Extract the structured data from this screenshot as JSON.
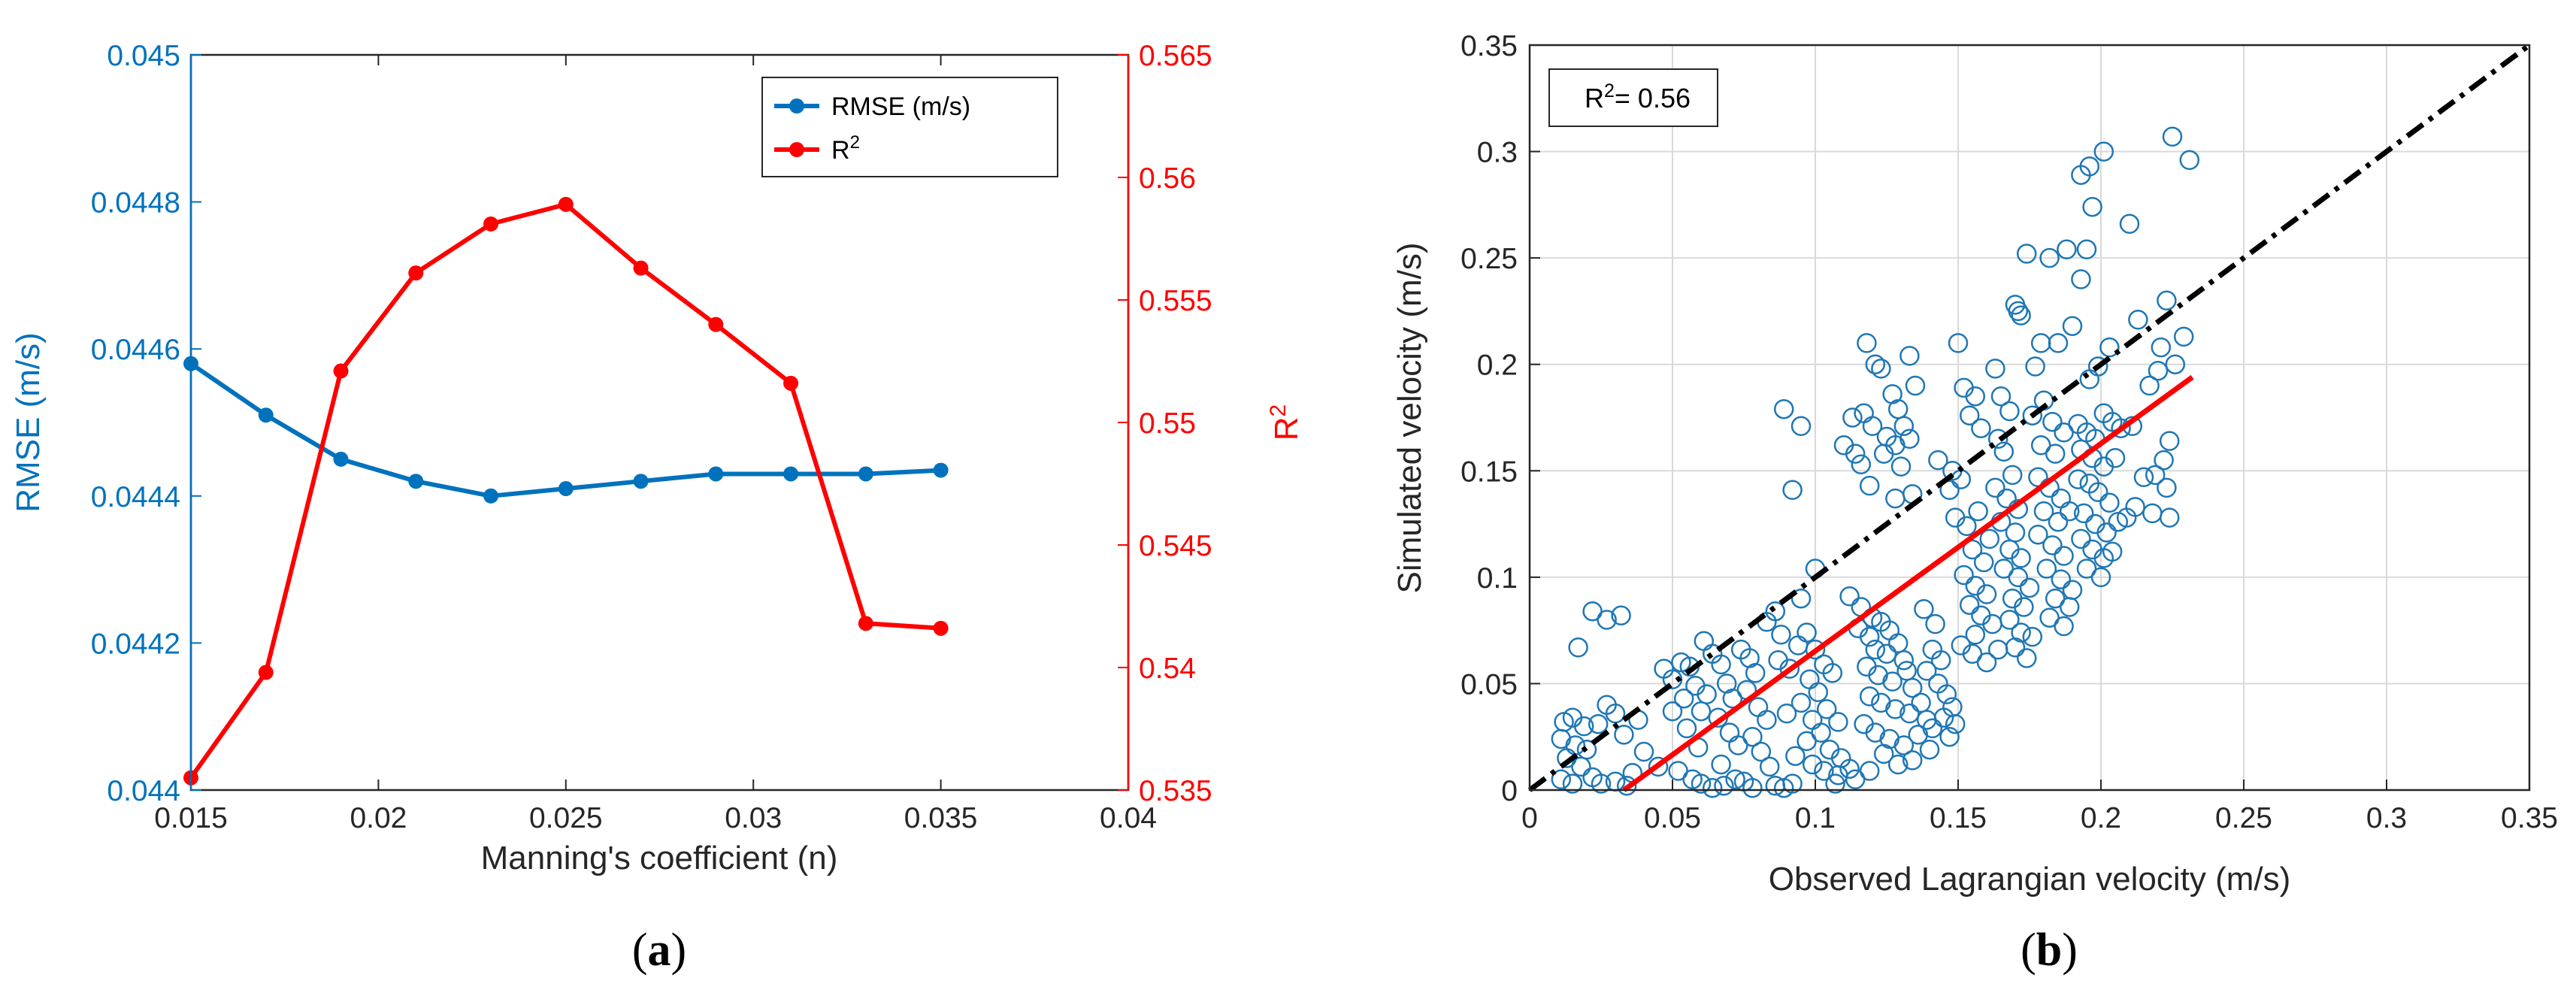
{
  "colors": {
    "rmse": "#0072BD",
    "r2": "#FF0000",
    "scatter": "#1F77B4",
    "fit": "#FF0000",
    "identity": "#000000",
    "grid": "#D9D9D9"
  },
  "chart_data": [
    {
      "id": "a",
      "type": "line",
      "panel_label": "(a)",
      "panel_label_letter": "a",
      "xlabel": "Manning's coefficient (n)",
      "ylabel_left": "RMSE (m/s)",
      "ylabel_right": "R",
      "ylabel_right_sup": "2",
      "xlim": [
        0.015,
        0.04
      ],
      "ylim_left": [
        0.044,
        0.045
      ],
      "ylim_right": [
        0.535,
        0.565
      ],
      "x_ticks": [
        "0.015",
        "0.02",
        "0.025",
        "0.03",
        "0.035",
        "0.04"
      ],
      "y_left_ticks": [
        "0.044",
        "0.0442",
        "0.0444",
        "0.0446",
        "0.0448",
        "0.045"
      ],
      "y_right_ticks": [
        "0.535",
        "0.54",
        "0.545",
        "0.55",
        "0.555",
        "0.56",
        "0.565"
      ],
      "grid": false,
      "legend_position": "top-right",
      "series": [
        {
          "name": "RMSE (m/s)",
          "axis": "left",
          "x": [
            0.015,
            0.017,
            0.019,
            0.021,
            0.023,
            0.025,
            0.027,
            0.029,
            0.031,
            0.033,
            0.035
          ],
          "values": [
            0.04458,
            0.04451,
            0.04445,
            0.04442,
            0.0444,
            0.04441,
            0.04442,
            0.04443,
            0.04443,
            0.04443,
            0.044435
          ]
        },
        {
          "name": "R",
          "name_sup": "2",
          "axis": "right",
          "x": [
            0.015,
            0.017,
            0.019,
            0.021,
            0.023,
            0.025,
            0.027,
            0.029,
            0.031,
            0.033,
            0.035
          ],
          "values": [
            0.5355,
            0.5398,
            0.5521,
            0.5561,
            0.5581,
            0.5589,
            0.5563,
            0.554,
            0.5516,
            0.5418,
            0.5416
          ]
        }
      ]
    },
    {
      "id": "b",
      "type": "scatter",
      "panel_label": "(b)",
      "panel_label_letter": "b",
      "xlabel": "Observed Lagrangian velocity (m/s)",
      "ylabel": "Simulated velocity (m/s)",
      "xlim": [
        0,
        0.35
      ],
      "ylim": [
        0,
        0.35
      ],
      "x_ticks": [
        "0",
        "0.05",
        "0.1",
        "0.15",
        "0.2",
        "0.25",
        "0.3",
        "0.35"
      ],
      "y_ticks": [
        "0",
        "0.05",
        "0.1",
        "0.15",
        "0.2",
        "0.25",
        "0.3",
        "0.35"
      ],
      "grid": true,
      "annotation": "R",
      "annotation_sup": "2",
      "annotation_value": "= 0.56",
      "identity_line": {
        "x": [
          0,
          0.35
        ],
        "y": [
          0,
          0.35
        ]
      },
      "fit_line": {
        "x": [
          0.033,
          0.232
        ],
        "y": [
          0.0,
          0.194
        ]
      },
      "points": [
        [
          0.022,
          0.084
        ],
        [
          0.027,
          0.08
        ],
        [
          0.032,
          0.082
        ],
        [
          0.017,
          0.067
        ],
        [
          0.012,
          0.032
        ],
        [
          0.015,
          0.034
        ],
        [
          0.019,
          0.03
        ],
        [
          0.011,
          0.024
        ],
        [
          0.016,
          0.021
        ],
        [
          0.02,
          0.019
        ],
        [
          0.013,
          0.015
        ],
        [
          0.018,
          0.011
        ],
        [
          0.022,
          0.006
        ],
        [
          0.011,
          0.005
        ],
        [
          0.015,
          0.003
        ],
        [
          0.025,
          0.003
        ],
        [
          0.03,
          0.004
        ],
        [
          0.034,
          0.002
        ],
        [
          0.027,
          0.04
        ],
        [
          0.03,
          0.036
        ],
        [
          0.024,
          0.031
        ],
        [
          0.033,
          0.026
        ],
        [
          0.038,
          0.033
        ],
        [
          0.04,
          0.018
        ],
        [
          0.036,
          0.008
        ],
        [
          0.045,
          0.011
        ],
        [
          0.047,
          0.057
        ],
        [
          0.05,
          0.052
        ],
        [
          0.053,
          0.06
        ],
        [
          0.056,
          0.058
        ],
        [
          0.058,
          0.049
        ],
        [
          0.054,
          0.043
        ],
        [
          0.05,
          0.037
        ],
        [
          0.06,
          0.037
        ],
        [
          0.062,
          0.045
        ],
        [
          0.055,
          0.029
        ],
        [
          0.059,
          0.02
        ],
        [
          0.052,
          0.009
        ],
        [
          0.057,
          0.005
        ],
        [
          0.06,
          0.003
        ],
        [
          0.064,
          0.001
        ],
        [
          0.068,
          0.002
        ],
        [
          0.061,
          0.07
        ],
        [
          0.064,
          0.064
        ],
        [
          0.067,
          0.059
        ],
        [
          0.069,
          0.05
        ],
        [
          0.071,
          0.043
        ],
        [
          0.066,
          0.034
        ],
        [
          0.07,
          0.027
        ],
        [
          0.073,
          0.021
        ],
        [
          0.067,
          0.012
        ],
        [
          0.072,
          0.005
        ],
        [
          0.075,
          0.004
        ],
        [
          0.078,
          0.001
        ],
        [
          0.074,
          0.066
        ],
        [
          0.077,
          0.062
        ],
        [
          0.079,
          0.055
        ],
        [
          0.076,
          0.047
        ],
        [
          0.08,
          0.039
        ],
        [
          0.083,
          0.033
        ],
        [
          0.078,
          0.025
        ],
        [
          0.081,
          0.018
        ],
        [
          0.084,
          0.011
        ],
        [
          0.086,
          0.002
        ],
        [
          0.089,
          0.001
        ],
        [
          0.092,
          0.003
        ],
        [
          0.089,
          0.179
        ],
        [
          0.095,
          0.171
        ],
        [
          0.092,
          0.141
        ],
        [
          0.1,
          0.104
        ],
        [
          0.095,
          0.09
        ],
        [
          0.086,
          0.084
        ],
        [
          0.083,
          0.079
        ],
        [
          0.088,
          0.073
        ],
        [
          0.094,
          0.068
        ],
        [
          0.097,
          0.074
        ],
        [
          0.1,
          0.066
        ],
        [
          0.087,
          0.061
        ],
        [
          0.091,
          0.057
        ],
        [
          0.098,
          0.052
        ],
        [
          0.103,
          0.059
        ],
        [
          0.106,
          0.055
        ],
        [
          0.101,
          0.046
        ],
        [
          0.095,
          0.041
        ],
        [
          0.09,
          0.036
        ],
        [
          0.099,
          0.033
        ],
        [
          0.104,
          0.038
        ],
        [
          0.108,
          0.032
        ],
        [
          0.102,
          0.027
        ],
        [
          0.097,
          0.023
        ],
        [
          0.093,
          0.016
        ],
        [
          0.099,
          0.012
        ],
        [
          0.105,
          0.019
        ],
        [
          0.109,
          0.015
        ],
        [
          0.103,
          0.009
        ],
        [
          0.108,
          0.007
        ],
        [
          0.112,
          0.01
        ],
        [
          0.107,
          0.003
        ],
        [
          0.114,
          0.005
        ],
        [
          0.11,
          0.162
        ],
        [
          0.114,
          0.158
        ],
        [
          0.116,
          0.153
        ],
        [
          0.113,
          0.175
        ],
        [
          0.117,
          0.177
        ],
        [
          0.12,
          0.171
        ],
        [
          0.118,
          0.21
        ],
        [
          0.121,
          0.2
        ],
        [
          0.123,
          0.198
        ],
        [
          0.127,
          0.186
        ],
        [
          0.129,
          0.179
        ],
        [
          0.131,
          0.171
        ],
        [
          0.125,
          0.166
        ],
        [
          0.128,
          0.162
        ],
        [
          0.133,
          0.165
        ],
        [
          0.13,
          0.152
        ],
        [
          0.134,
          0.139
        ],
        [
          0.128,
          0.137
        ],
        [
          0.133,
          0.204
        ],
        [
          0.135,
          0.19
        ],
        [
          0.124,
          0.158
        ],
        [
          0.119,
          0.143
        ],
        [
          0.112,
          0.091
        ],
        [
          0.116,
          0.086
        ],
        [
          0.12,
          0.081
        ],
        [
          0.115,
          0.076
        ],
        [
          0.119,
          0.072
        ],
        [
          0.123,
          0.079
        ],
        [
          0.126,
          0.075
        ],
        [
          0.121,
          0.066
        ],
        [
          0.125,
          0.064
        ],
        [
          0.129,
          0.069
        ],
        [
          0.131,
          0.061
        ],
        [
          0.118,
          0.058
        ],
        [
          0.122,
          0.054
        ],
        [
          0.127,
          0.051
        ],
        [
          0.132,
          0.056
        ],
        [
          0.134,
          0.048
        ],
        [
          0.119,
          0.044
        ],
        [
          0.123,
          0.041
        ],
        [
          0.128,
          0.038
        ],
        [
          0.133,
          0.036
        ],
        [
          0.137,
          0.041
        ],
        [
          0.139,
          0.033
        ],
        [
          0.117,
          0.031
        ],
        [
          0.121,
          0.027
        ],
        [
          0.126,
          0.024
        ],
        [
          0.131,
          0.021
        ],
        [
          0.136,
          0.026
        ],
        [
          0.14,
          0.019
        ],
        [
          0.124,
          0.017
        ],
        [
          0.129,
          0.012
        ],
        [
          0.134,
          0.014
        ],
        [
          0.119,
          0.009
        ],
        [
          0.138,
          0.085
        ],
        [
          0.142,
          0.078
        ],
        [
          0.141,
          0.066
        ],
        [
          0.144,
          0.061
        ],
        [
          0.139,
          0.056
        ],
        [
          0.143,
          0.05
        ],
        [
          0.146,
          0.045
        ],
        [
          0.148,
          0.039
        ],
        [
          0.145,
          0.034
        ],
        [
          0.141,
          0.029
        ],
        [
          0.149,
          0.031
        ],
        [
          0.147,
          0.025
        ],
        [
          0.143,
          0.155
        ],
        [
          0.148,
          0.15
        ],
        [
          0.151,
          0.146
        ],
        [
          0.147,
          0.141
        ],
        [
          0.152,
          0.189
        ],
        [
          0.156,
          0.185
        ],
        [
          0.154,
          0.176
        ],
        [
          0.158,
          0.17
        ],
        [
          0.15,
          0.21
        ],
        [
          0.149,
          0.128
        ],
        [
          0.153,
          0.124
        ],
        [
          0.157,
          0.131
        ],
        [
          0.161,
          0.118
        ],
        [
          0.155,
          0.113
        ],
        [
          0.159,
          0.107
        ],
        [
          0.152,
          0.101
        ],
        [
          0.156,
          0.096
        ],
        [
          0.16,
          0.092
        ],
        [
          0.154,
          0.087
        ],
        [
          0.158,
          0.082
        ],
        [
          0.162,
          0.078
        ],
        [
          0.156,
          0.073
        ],
        [
          0.151,
          0.068
        ],
        [
          0.155,
          0.064
        ],
        [
          0.16,
          0.06
        ],
        [
          0.164,
          0.066
        ],
        [
          0.163,
          0.198
        ],
        [
          0.165,
          0.185
        ],
        [
          0.168,
          0.178
        ],
        [
          0.164,
          0.165
        ],
        [
          0.166,
          0.159
        ],
        [
          0.169,
          0.148
        ],
        [
          0.163,
          0.142
        ],
        [
          0.167,
          0.137
        ],
        [
          0.171,
          0.132
        ],
        [
          0.165,
          0.126
        ],
        [
          0.17,
          0.121
        ],
        [
          0.168,
          0.113
        ],
        [
          0.172,
          0.109
        ],
        [
          0.166,
          0.104
        ],
        [
          0.171,
          0.1
        ],
        [
          0.175,
          0.095
        ],
        [
          0.169,
          0.09
        ],
        [
          0.173,
          0.086
        ],
        [
          0.168,
          0.08
        ],
        [
          0.172,
          0.074
        ],
        [
          0.176,
          0.072
        ],
        [
          0.17,
          0.067
        ],
        [
          0.174,
          0.062
        ],
        [
          0.17,
          0.228
        ],
        [
          0.172,
          0.223
        ],
        [
          0.171,
          0.225
        ],
        [
          0.174,
          0.252
        ],
        [
          0.177,
          0.199
        ],
        [
          0.179,
          0.21
        ],
        [
          0.182,
          0.25
        ],
        [
          0.185,
          0.21
        ],
        [
          0.188,
          0.254
        ],
        [
          0.19,
          0.218
        ],
        [
          0.176,
          0.176
        ],
        [
          0.18,
          0.183
        ],
        [
          0.183,
          0.173
        ],
        [
          0.179,
          0.162
        ],
        [
          0.184,
          0.158
        ],
        [
          0.187,
          0.168
        ],
        [
          0.178,
          0.147
        ],
        [
          0.182,
          0.142
        ],
        [
          0.186,
          0.137
        ],
        [
          0.18,
          0.131
        ],
        [
          0.185,
          0.126
        ],
        [
          0.189,
          0.131
        ],
        [
          0.178,
          0.12
        ],
        [
          0.183,
          0.115
        ],
        [
          0.187,
          0.11
        ],
        [
          0.181,
          0.104
        ],
        [
          0.186,
          0.099
        ],
        [
          0.19,
          0.094
        ],
        [
          0.184,
          0.09
        ],
        [
          0.189,
          0.086
        ],
        [
          0.182,
          0.081
        ],
        [
          0.187,
          0.077
        ],
        [
          0.193,
          0.289
        ],
        [
          0.196,
          0.293
        ],
        [
          0.195,
          0.254
        ],
        [
          0.193,
          0.24
        ],
        [
          0.197,
          0.274
        ],
        [
          0.201,
          0.3
        ],
        [
          0.203,
          0.208
        ],
        [
          0.199,
          0.199
        ],
        [
          0.196,
          0.193
        ],
        [
          0.192,
          0.172
        ],
        [
          0.195,
          0.168
        ],
        [
          0.198,
          0.165
        ],
        [
          0.201,
          0.177
        ],
        [
          0.204,
          0.173
        ],
        [
          0.207,
          0.17
        ],
        [
          0.193,
          0.16
        ],
        [
          0.197,
          0.156
        ],
        [
          0.201,
          0.152
        ],
        [
          0.205,
          0.156
        ],
        [
          0.192,
          0.146
        ],
        [
          0.196,
          0.144
        ],
        [
          0.199,
          0.14
        ],
        [
          0.203,
          0.135
        ],
        [
          0.194,
          0.13
        ],
        [
          0.198,
          0.125
        ],
        [
          0.202,
          0.121
        ],
        [
          0.206,
          0.126
        ],
        [
          0.193,
          0.118
        ],
        [
          0.197,
          0.113
        ],
        [
          0.201,
          0.109
        ],
        [
          0.195,
          0.104
        ],
        [
          0.2,
          0.1
        ],
        [
          0.204,
          0.112
        ],
        [
          0.21,
          0.266
        ],
        [
          0.213,
          0.221
        ],
        [
          0.211,
          0.171
        ],
        [
          0.215,
          0.147
        ],
        [
          0.209,
          0.128
        ],
        [
          0.212,
          0.133
        ],
        [
          0.217,
          0.19
        ],
        [
          0.221,
          0.208
        ],
        [
          0.223,
          0.23
        ],
        [
          0.225,
          0.307
        ],
        [
          0.231,
          0.296
        ],
        [
          0.229,
          0.213
        ],
        [
          0.226,
          0.2
        ],
        [
          0.22,
          0.197
        ],
        [
          0.224,
          0.164
        ],
        [
          0.219,
          0.148
        ],
        [
          0.222,
          0.155
        ],
        [
          0.223,
          0.142
        ],
        [
          0.224,
          0.128
        ],
        [
          0.218,
          0.13
        ]
      ]
    }
  ]
}
